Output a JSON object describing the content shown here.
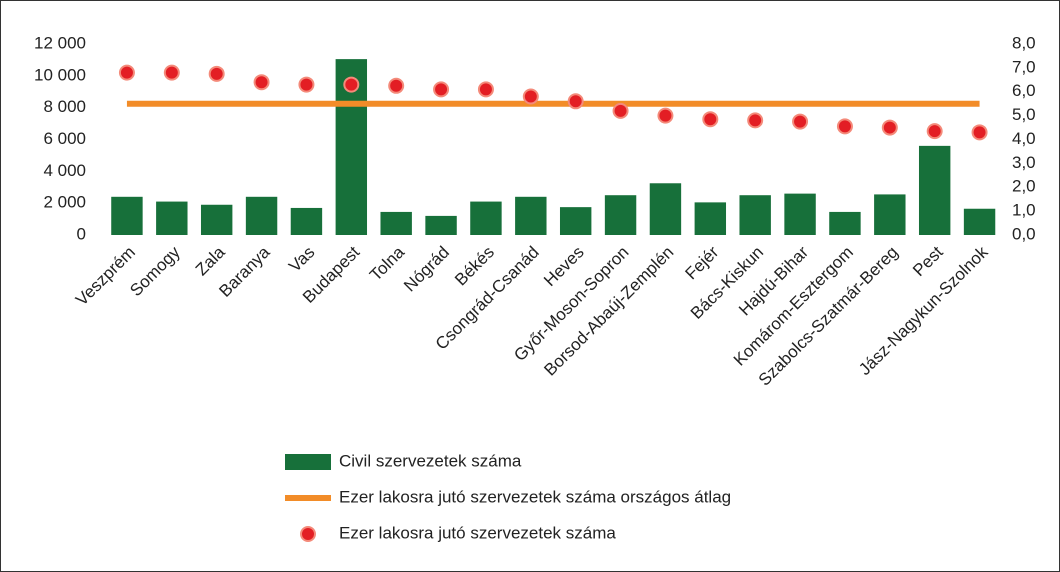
{
  "chart_data": {
    "type": "combo",
    "categories": [
      "Veszprém",
      "Somogy",
      "Zala",
      "Baranya",
      "Vas",
      "Budapest",
      "Tolna",
      "Nógrád",
      "Békés",
      "Csongrád-Csanád",
      "Heves",
      "Győr-Moson-Sopron",
      "Borsod-Abaúj-Zemplén",
      "Fejér",
      "Bács-Kiskun",
      "Hajdú-Bihar",
      "Komárom-Esztergom",
      "Szabolcs-Szatmár-Bereg",
      "Pest",
      "Jász-Nagykun-Szolnok"
    ],
    "series": [
      {
        "name": "Civil szervezetek száma",
        "type": "bar",
        "color": "#17703a",
        "axis": "y",
        "values": [
          2400,
          2100,
          1900,
          2400,
          1700,
          11050,
          1450,
          1200,
          2100,
          2400,
          1750,
          2500,
          3250,
          2050,
          2500,
          2600,
          1450,
          2550,
          5600,
          1650
        ]
      },
      {
        "name": "Ezer lakosra jutó szervezetek száma országos átlag",
        "type": "line",
        "color": "#f28c28",
        "axis": "y2",
        "values": [
          5.5,
          5.5,
          5.5,
          5.5,
          5.5,
          5.5,
          5.5,
          5.5,
          5.5,
          5.5,
          5.5,
          5.5,
          5.5,
          5.5,
          5.5,
          5.5,
          5.5,
          5.5,
          5.5,
          5.5
        ]
      },
      {
        "name": "Ezer lakosra jutó szervezetek száma",
        "type": "scatter",
        "color": "#e31e24",
        "axis": "y2",
        "values": [
          6.8,
          6.8,
          6.75,
          6.4,
          6.3,
          6.3,
          6.25,
          6.1,
          6.1,
          5.8,
          5.6,
          5.2,
          5.0,
          4.85,
          4.8,
          4.75,
          4.55,
          4.5,
          4.35,
          4.3
        ]
      }
    ],
    "ylim": [
      0,
      12000
    ],
    "yticks": [
      0,
      {
        "value": 2000,
        "label": "2 000"
      },
      {
        "value": 4000,
        "label": "4 000"
      },
      {
        "value": 6000,
        "label": "6 000"
      },
      {
        "value": 8000,
        "label": "8 000"
      },
      {
        "value": 10000,
        "label": "10 000"
      },
      {
        "value": 12000,
        "label": "12 000"
      }
    ],
    "y2lim": [
      0,
      8
    ],
    "y2ticks": [
      {
        "value": 0,
        "label": "0,0"
      },
      {
        "value": 1,
        "label": "1,0"
      },
      {
        "value": 2,
        "label": "2,0"
      },
      {
        "value": 3,
        "label": "3,0"
      },
      {
        "value": 4,
        "label": "4,0"
      },
      {
        "value": 5,
        "label": "5,0"
      },
      {
        "value": 6,
        "label": "6,0"
      },
      {
        "value": 7,
        "label": "7,0"
      },
      {
        "value": 8,
        "label": "8,0"
      }
    ],
    "grid": false,
    "legend": "bottom-left"
  }
}
